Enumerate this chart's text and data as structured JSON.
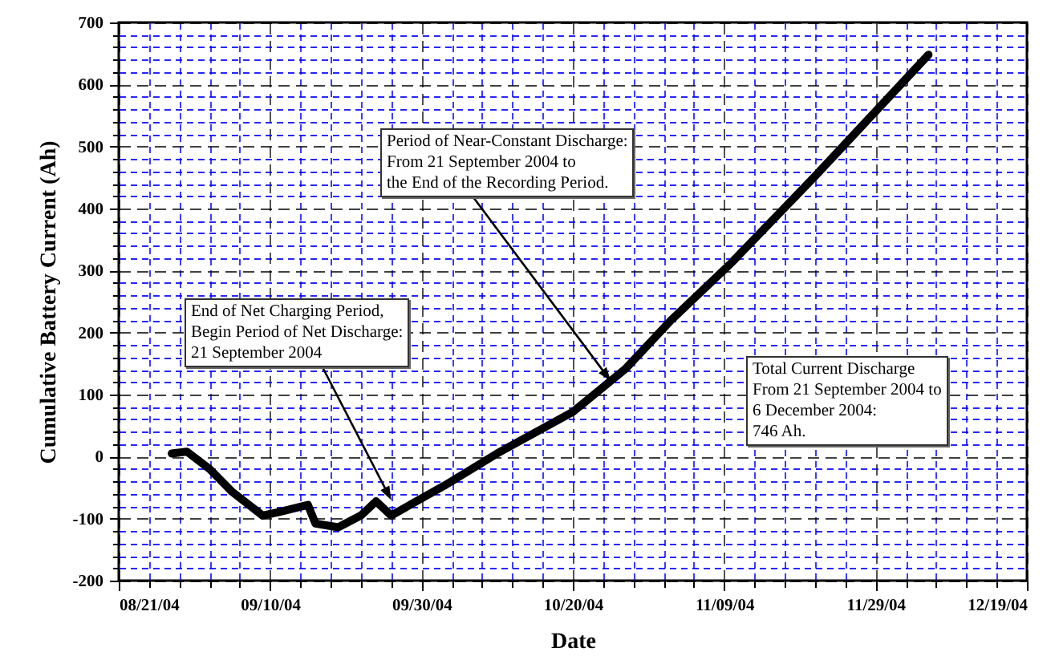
{
  "chart_data": {
    "type": "line",
    "xlabel": "Date",
    "ylabel": "Cumulative Battery Current (Ah)",
    "x": [
      "2004-08-28",
      "2004-08-30",
      "2004-09-02",
      "2004-09-05",
      "2004-09-09",
      "2004-09-11",
      "2004-09-15",
      "2004-09-16",
      "2004-09-19",
      "2004-09-22",
      "2004-09-24",
      "2004-09-26",
      "2004-10-03",
      "2004-10-10",
      "2004-10-20",
      "2004-10-27",
      "2004-11-02",
      "2004-11-10",
      "2004-11-21",
      "2004-12-06"
    ],
    "series": [
      {
        "color": "#000000",
        "values": [
          5,
          8,
          -20,
          -57,
          -95,
          -90,
          -78,
          -108,
          -114,
          -95,
          -72,
          -95,
          -47,
          5,
          72,
          142,
          220,
          313,
          452,
          648
        ]
      }
    ],
    "xlim": [
      "2004-08-21",
      "2004-12-19"
    ],
    "xticks": [
      {
        "value": "2004-08-21",
        "label": "08/21/04"
      },
      {
        "value": "2004-08-25",
        "label": null
      },
      {
        "value": "2004-08-29",
        "label": null
      },
      {
        "value": "2004-09-02",
        "label": null
      },
      {
        "value": "2004-09-06",
        "label": null
      },
      {
        "value": "2004-09-10",
        "label": "09/10/04"
      },
      {
        "value": "2004-09-14",
        "label": null
      },
      {
        "value": "2004-09-18",
        "label": null
      },
      {
        "value": "2004-09-22",
        "label": null
      },
      {
        "value": "2004-09-26",
        "label": null
      },
      {
        "value": "2004-09-30",
        "label": "09/30/04"
      },
      {
        "value": "2004-10-04",
        "label": null
      },
      {
        "value": "2004-10-08",
        "label": null
      },
      {
        "value": "2004-10-12",
        "label": null
      },
      {
        "value": "2004-10-16",
        "label": null
      },
      {
        "value": "2004-10-20",
        "label": "10/20/04"
      },
      {
        "value": "2004-10-24",
        "label": null
      },
      {
        "value": "2004-10-28",
        "label": null
      },
      {
        "value": "2004-11-01",
        "label": null
      },
      {
        "value": "2004-11-05",
        "label": null
      },
      {
        "value": "2004-11-09",
        "label": "11/09/04"
      },
      {
        "value": "2004-11-13",
        "label": null
      },
      {
        "value": "2004-11-17",
        "label": null
      },
      {
        "value": "2004-11-21",
        "label": null
      },
      {
        "value": "2004-11-25",
        "label": null
      },
      {
        "value": "2004-11-29",
        "label": "11/29/04"
      },
      {
        "value": "2004-12-03",
        "label": null
      },
      {
        "value": "2004-12-07",
        "label": null
      },
      {
        "value": "2004-12-11",
        "label": null
      },
      {
        "value": "2004-12-15",
        "label": null
      },
      {
        "value": "2004-12-19",
        "label": "12/19/04"
      }
    ],
    "ylim": [
      -200,
      700
    ],
    "yticks": [
      -200,
      {
        "value": -180,
        "label": null
      },
      {
        "value": -160,
        "label": null
      },
      {
        "value": -140,
        "label": null
      },
      {
        "value": -120,
        "label": null
      },
      -100,
      {
        "value": -80,
        "label": null
      },
      {
        "value": -60,
        "label": null
      },
      {
        "value": -40,
        "label": null
      },
      {
        "value": -20,
        "label": null
      },
      0,
      {
        "value": 20,
        "label": null
      },
      {
        "value": 40,
        "label": null
      },
      {
        "value": 60,
        "label": null
      },
      {
        "value": 80,
        "label": null
      },
      100,
      {
        "value": 120,
        "label": null
      },
      {
        "value": 140,
        "label": null
      },
      {
        "value": 160,
        "label": null
      },
      {
        "value": 180,
        "label": null
      },
      200,
      {
        "value": 220,
        "label": null
      },
      {
        "value": 240,
        "label": null
      },
      {
        "value": 260,
        "label": null
      },
      {
        "value": 280,
        "label": null
      },
      300,
      {
        "value": 320,
        "label": null
      },
      {
        "value": 340,
        "label": null
      },
      {
        "value": 360,
        "label": null
      },
      {
        "value": 380,
        "label": null
      },
      400,
      {
        "value": 420,
        "label": null
      },
      {
        "value": 440,
        "label": null
      },
      {
        "value": 460,
        "label": null
      },
      {
        "value": 480,
        "label": null
      },
      500,
      {
        "value": 520,
        "label": null
      },
      {
        "value": 540,
        "label": null
      },
      {
        "value": 560,
        "label": null
      },
      {
        "value": 580,
        "label": null
      },
      600,
      {
        "value": 620,
        "label": null
      },
      {
        "value": 640,
        "label": null
      },
      {
        "value": 660,
        "label": null
      },
      {
        "value": 680,
        "label": null
      },
      700
    ],
    "grid": true,
    "marker": "none",
    "line_style": "solid",
    "annotations": [
      {
        "text": "Period of Near-Constant Discharge:\nFrom 21 September 2004 to\nthe End of the Recording Period.",
        "x": "2004-10-25",
        "y": 122
      },
      {
        "text": "End of Net Charging Period,\nBegin Period of Net Discharge:\n21 September 2004",
        "x": "2004-09-26",
        "y": -70
      },
      "Total Current Discharge\nFrom 21 September 2004 to\n6 December 2004:\n746 Ah."
    ]
  }
}
